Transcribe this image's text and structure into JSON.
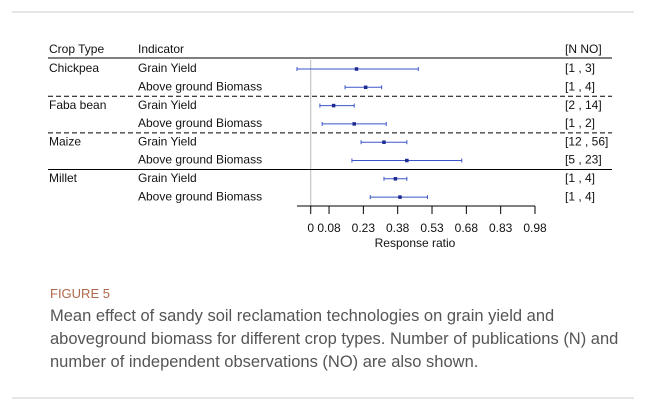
{
  "chart_data": {
    "type": "forest",
    "headers": {
      "crop": "Crop Type",
      "indicator": "Indicator",
      "counts": "[N  NO]"
    },
    "rows": [
      {
        "crop": "Chickpea",
        "indicator": "Grain Yield",
        "estimate": 0.2,
        "lower": -0.06,
        "upper": 0.47,
        "counts": "[1  ,  3]"
      },
      {
        "crop": null,
        "indicator": "Above ground Biomass",
        "estimate": 0.24,
        "lower": 0.15,
        "upper": 0.31,
        "counts": "[1  ,  4]"
      },
      {
        "crop": "Faba bean",
        "indicator": "Grain Yield",
        "estimate": 0.1,
        "lower": 0.04,
        "upper": 0.19,
        "counts": "[2 , 14]"
      },
      {
        "crop": null,
        "indicator": "Above ground Biomass",
        "estimate": 0.19,
        "lower": 0.05,
        "upper": 0.33,
        "counts": "[1  ,  2]"
      },
      {
        "crop": "Maize",
        "indicator": "Grain Yield",
        "estimate": 0.32,
        "lower": 0.22,
        "upper": 0.42,
        "counts": "[12 , 56]"
      },
      {
        "crop": null,
        "indicator": "Above ground Biomass",
        "estimate": 0.42,
        "lower": 0.18,
        "upper": 0.66,
        "counts": "[5  , 23]"
      },
      {
        "crop": "Millet",
        "indicator": "Grain Yield",
        "estimate": 0.37,
        "lower": 0.32,
        "upper": 0.42,
        "counts": "[1  ,  4]"
      },
      {
        "crop": null,
        "indicator": "Above ground Biomass",
        "estimate": 0.39,
        "lower": 0.26,
        "upper": 0.51,
        "counts": "[1  ,  4]"
      }
    ],
    "xlim": [
      -0.06,
      0.98
    ],
    "xticks": [
      0,
      0.08,
      0.23,
      0.38,
      0.53,
      0.68,
      0.83,
      0.98
    ],
    "xlabel": "Response ratio",
    "color": "#3a56c8",
    "point_color": "#1a2a90"
  },
  "caption": {
    "label": "FIGURE 5",
    "text": "Mean effect of sandy soil reclamation technologies on grain yield and aboveground biomass for different crop types. Number of publications (N) and number of independent observations (NO) are also shown."
  }
}
